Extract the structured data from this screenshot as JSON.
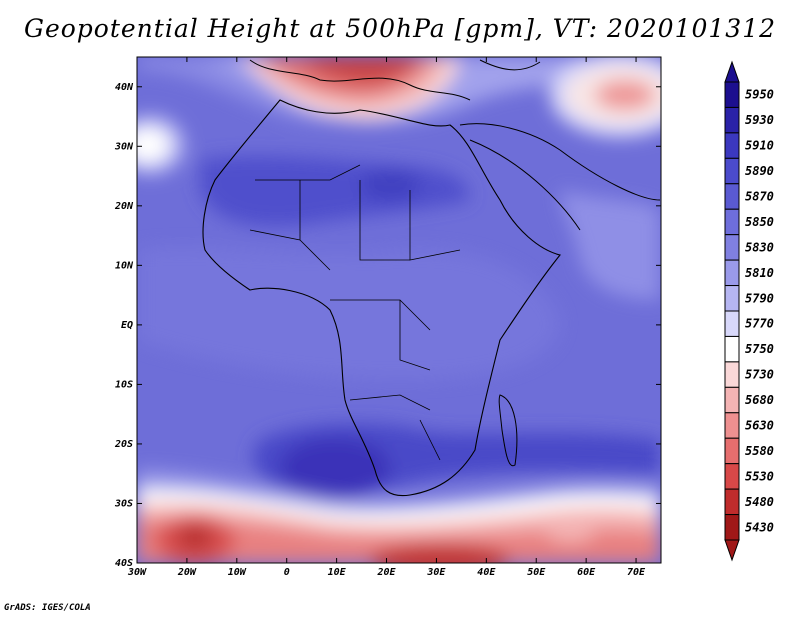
{
  "title": "Geopotential Height at 500hPa [gpm], VT: 2020101312",
  "credit": "GrADS: IGES/COLA",
  "map": {
    "lon_range": [
      -30,
      75
    ],
    "lat_range": [
      -40,
      45
    ],
    "lon_ticks": [
      "30W",
      "20W",
      "10W",
      "0",
      "10E",
      "20E",
      "30E",
      "40E",
      "50E",
      "60E",
      "70E"
    ],
    "lat_ticks": [
      "40S",
      "30S",
      "20S",
      "10S",
      "EQ",
      "10N",
      "20N",
      "30N",
      "40N"
    ]
  },
  "colorbar": {
    "levels": [
      "5950",
      "5930",
      "5910",
      "5890",
      "5870",
      "5850",
      "5830",
      "5810",
      "5790",
      "5770",
      "5750",
      "5730",
      "5680",
      "5630",
      "5580",
      "5530",
      "5480",
      "5430"
    ],
    "colors": [
      "#1c0f8f",
      "#2a22a8",
      "#3b38bf",
      "#4b4bcc",
      "#5a5ad2",
      "#6e6edb",
      "#8080e1",
      "#9a9aea",
      "#b6b6f2",
      "#d8d8fa",
      "#ffffff",
      "#fad8d8",
      "#f4b4b4",
      "#ee9090",
      "#e66e6e",
      "#d84848",
      "#c02c2c",
      "#a01818"
    ]
  }
}
